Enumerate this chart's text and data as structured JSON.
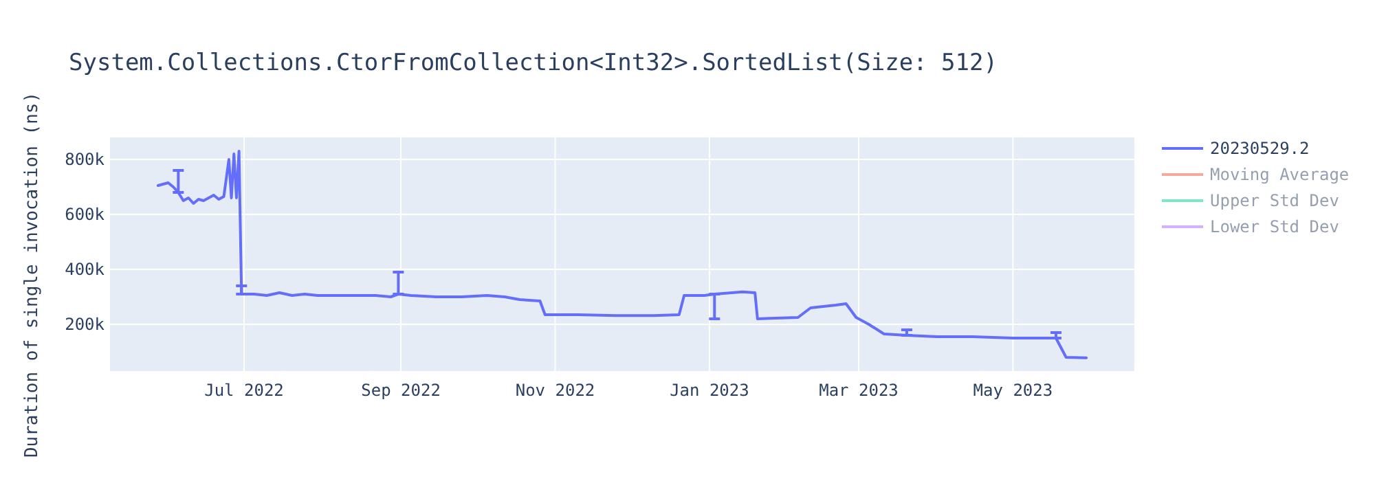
{
  "chart_data": {
    "type": "line",
    "title": "System.Collections.CtorFromCollection<Int32>.SortedList(Size: 512)",
    "ylabel": "Duration of single invocation (ns)",
    "x": [
      "2022-05-28",
      "2022-06-01",
      "2022-06-03",
      "2022-06-05",
      "2022-06-07",
      "2022-06-09",
      "2022-06-11",
      "2022-06-13",
      "2022-06-15",
      "2022-06-17",
      "2022-06-19",
      "2022-06-21",
      "2022-06-23",
      "2022-06-25",
      "2022-06-26",
      "2022-06-27",
      "2022-06-28",
      "2022-06-29",
      "2022-06-30",
      "2022-07-05",
      "2022-07-10",
      "2022-07-15",
      "2022-07-20",
      "2022-07-25",
      "2022-07-30",
      "2022-08-05",
      "2022-08-22",
      "2022-08-28",
      "2022-08-31",
      "2022-09-05",
      "2022-09-15",
      "2022-09-25",
      "2022-10-05",
      "2022-10-12",
      "2022-10-18",
      "2022-10-26",
      "2022-10-28",
      "2022-11-10",
      "2022-11-25",
      "2022-12-10",
      "2022-12-20",
      "2022-12-22",
      "2022-12-30",
      "2023-01-03",
      "2023-01-10",
      "2023-01-14",
      "2023-01-19",
      "2023-01-20",
      "2023-01-25",
      "2023-02-05",
      "2023-02-10",
      "2023-02-15",
      "2023-02-20",
      "2023-02-24",
      "2023-02-28",
      "2023-03-05",
      "2023-03-11",
      "2023-03-20",
      "2023-04-01",
      "2023-04-15",
      "2023-05-01",
      "2023-05-10",
      "2023-05-18",
      "2023-05-22",
      "2023-05-30"
    ],
    "series": [
      {
        "name": "20230529.2",
        "color": "#636efa",
        "values": [
          705000,
          715000,
          700000,
          680000,
          650000,
          660000,
          640000,
          655000,
          650000,
          660000,
          670000,
          655000,
          665000,
          800000,
          660000,
          820000,
          660000,
          830000,
          310000,
          310000,
          305000,
          315000,
          305000,
          310000,
          305000,
          305000,
          305000,
          300000,
          310000,
          305000,
          300000,
          300000,
          305000,
          300000,
          290000,
          285000,
          235000,
          235000,
          232000,
          232000,
          235000,
          305000,
          305000,
          310000,
          315000,
          318000,
          315000,
          220000,
          222000,
          225000,
          260000,
          265000,
          270000,
          275000,
          225000,
          200000,
          165000,
          160000,
          155000,
          155000,
          150000,
          150000,
          150000,
          80000,
          78000
        ],
        "errors": [
          null,
          null,
          null,
          [
            680000,
            760000
          ],
          null,
          null,
          null,
          null,
          null,
          null,
          null,
          null,
          null,
          null,
          null,
          null,
          null,
          null,
          [
            310000,
            340000
          ],
          null,
          null,
          null,
          null,
          null,
          null,
          null,
          null,
          null,
          [
            310000,
            390000
          ],
          null,
          null,
          null,
          null,
          null,
          null,
          null,
          null,
          null,
          null,
          null,
          null,
          null,
          null,
          [
            220000,
            310000
          ],
          null,
          null,
          null,
          null,
          null,
          null,
          null,
          null,
          null,
          null,
          null,
          null,
          null,
          [
            160000,
            180000
          ],
          null,
          null,
          null,
          null,
          [
            150000,
            170000
          ],
          null,
          null
        ]
      },
      {
        "name": "Moving Average",
        "color": "#ef553b",
        "values": [
          null,
          null,
          null,
          null,
          null,
          null,
          null,
          null,
          null,
          null,
          null,
          null,
          null,
          null,
          null,
          null,
          null,
          null,
          null,
          null,
          null,
          null,
          null,
          null,
          null,
          null,
          null,
          null,
          null,
          null,
          null,
          null,
          null,
          null,
          null,
          null,
          null,
          null,
          null,
          null,
          null,
          null,
          null,
          null,
          null,
          null,
          null,
          null,
          null,
          null,
          null,
          null,
          null,
          null,
          null,
          null,
          null,
          null,
          null,
          null,
          null,
          null,
          null,
          null,
          null
        ]
      },
      {
        "name": "Upper Std Dev",
        "color": "#00cc96",
        "values": [
          null,
          null,
          null,
          null,
          null,
          null,
          null,
          null,
          null,
          null,
          null,
          null,
          null,
          null,
          null,
          null,
          null,
          null,
          null,
          null,
          null,
          null,
          null,
          null,
          null,
          null,
          null,
          null,
          null,
          null,
          null,
          null,
          null,
          null,
          null,
          null,
          null,
          null,
          null,
          null,
          null,
          null,
          null,
          null,
          null,
          null,
          null,
          null,
          null,
          null,
          null,
          null,
          null,
          null,
          null,
          null,
          null,
          null,
          null,
          null,
          null,
          null,
          null,
          null,
          null
        ]
      },
      {
        "name": "Lower Std Dev",
        "color": "#ab63fa",
        "values": [
          null,
          null,
          null,
          null,
          null,
          null,
          null,
          null,
          null,
          null,
          null,
          null,
          null,
          null,
          null,
          null,
          null,
          null,
          null,
          null,
          null,
          null,
          null,
          null,
          null,
          null,
          null,
          null,
          null,
          null,
          null,
          null,
          null,
          null,
          null,
          null,
          null,
          null,
          null,
          null,
          null,
          null,
          null,
          null,
          null,
          null,
          null,
          null,
          null,
          null,
          null,
          null,
          null,
          null,
          null,
          null,
          null,
          null,
          null,
          null,
          null,
          null,
          null,
          null,
          null
        ]
      }
    ],
    "xlim": [
      "2022-05-09",
      "2023-06-18"
    ],
    "xticks": [
      {
        "value": "2022-07-01",
        "label": "Jul 2022"
      },
      {
        "value": "2022-09-01",
        "label": "Sep 2022"
      },
      {
        "value": "2022-11-01",
        "label": "Nov 2022"
      },
      {
        "value": "2023-01-01",
        "label": "Jan 2023"
      },
      {
        "value": "2023-03-01",
        "label": "Mar 2023"
      },
      {
        "value": "2023-05-01",
        "label": "May 2023"
      }
    ],
    "ylim": [
      30000,
      880000
    ],
    "yticks": [
      {
        "value": 200000,
        "label": "200k"
      },
      {
        "value": 400000,
        "label": "400k"
      },
      {
        "value": 600000,
        "label": "600k"
      },
      {
        "value": 800000,
        "label": "800k"
      }
    ],
    "grid": true,
    "legend": "top right",
    "marker": "none",
    "line_style": "solid"
  }
}
